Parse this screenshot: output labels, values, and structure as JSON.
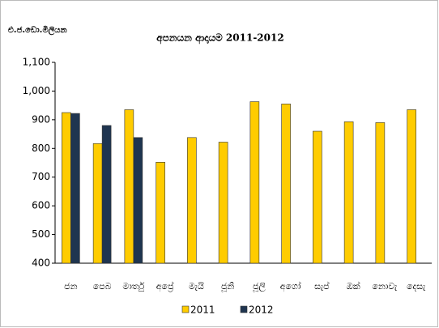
{
  "chart_data": {
    "type": "bar",
    "title": "අපනයන ආදායම 2011-2012",
    "ylabel": "එ.ජ.ඩො.මිලියන",
    "categories": [
      "ජන",
      "පෙබ",
      "මාර්තු",
      "අප්‍රේ",
      "මැයි",
      "ජූනි",
      "ජූලි",
      "අගෝ",
      "සැප්",
      "ඔක්",
      "නොවැ",
      "දෙසැ"
    ],
    "series": [
      {
        "name": "2011",
        "color": "#ffcc00",
        "values": [
          925,
          817,
          935,
          752,
          838,
          822,
          963,
          955,
          860,
          893,
          890,
          935
        ]
      },
      {
        "name": "2012",
        "color": "#1f3550",
        "values": [
          922,
          880,
          838,
          null,
          null,
          null,
          null,
          null,
          null,
          null,
          null,
          null
        ]
      }
    ],
    "ylim": [
      400,
      1100
    ],
    "yticks": [
      400,
      500,
      600,
      700,
      800,
      900,
      {
        "value": 1000,
        "label": "1,000"
      },
      {
        "value": 1100,
        "label": "1,100"
      }
    ],
    "grid": false,
    "legend": "bottom"
  }
}
